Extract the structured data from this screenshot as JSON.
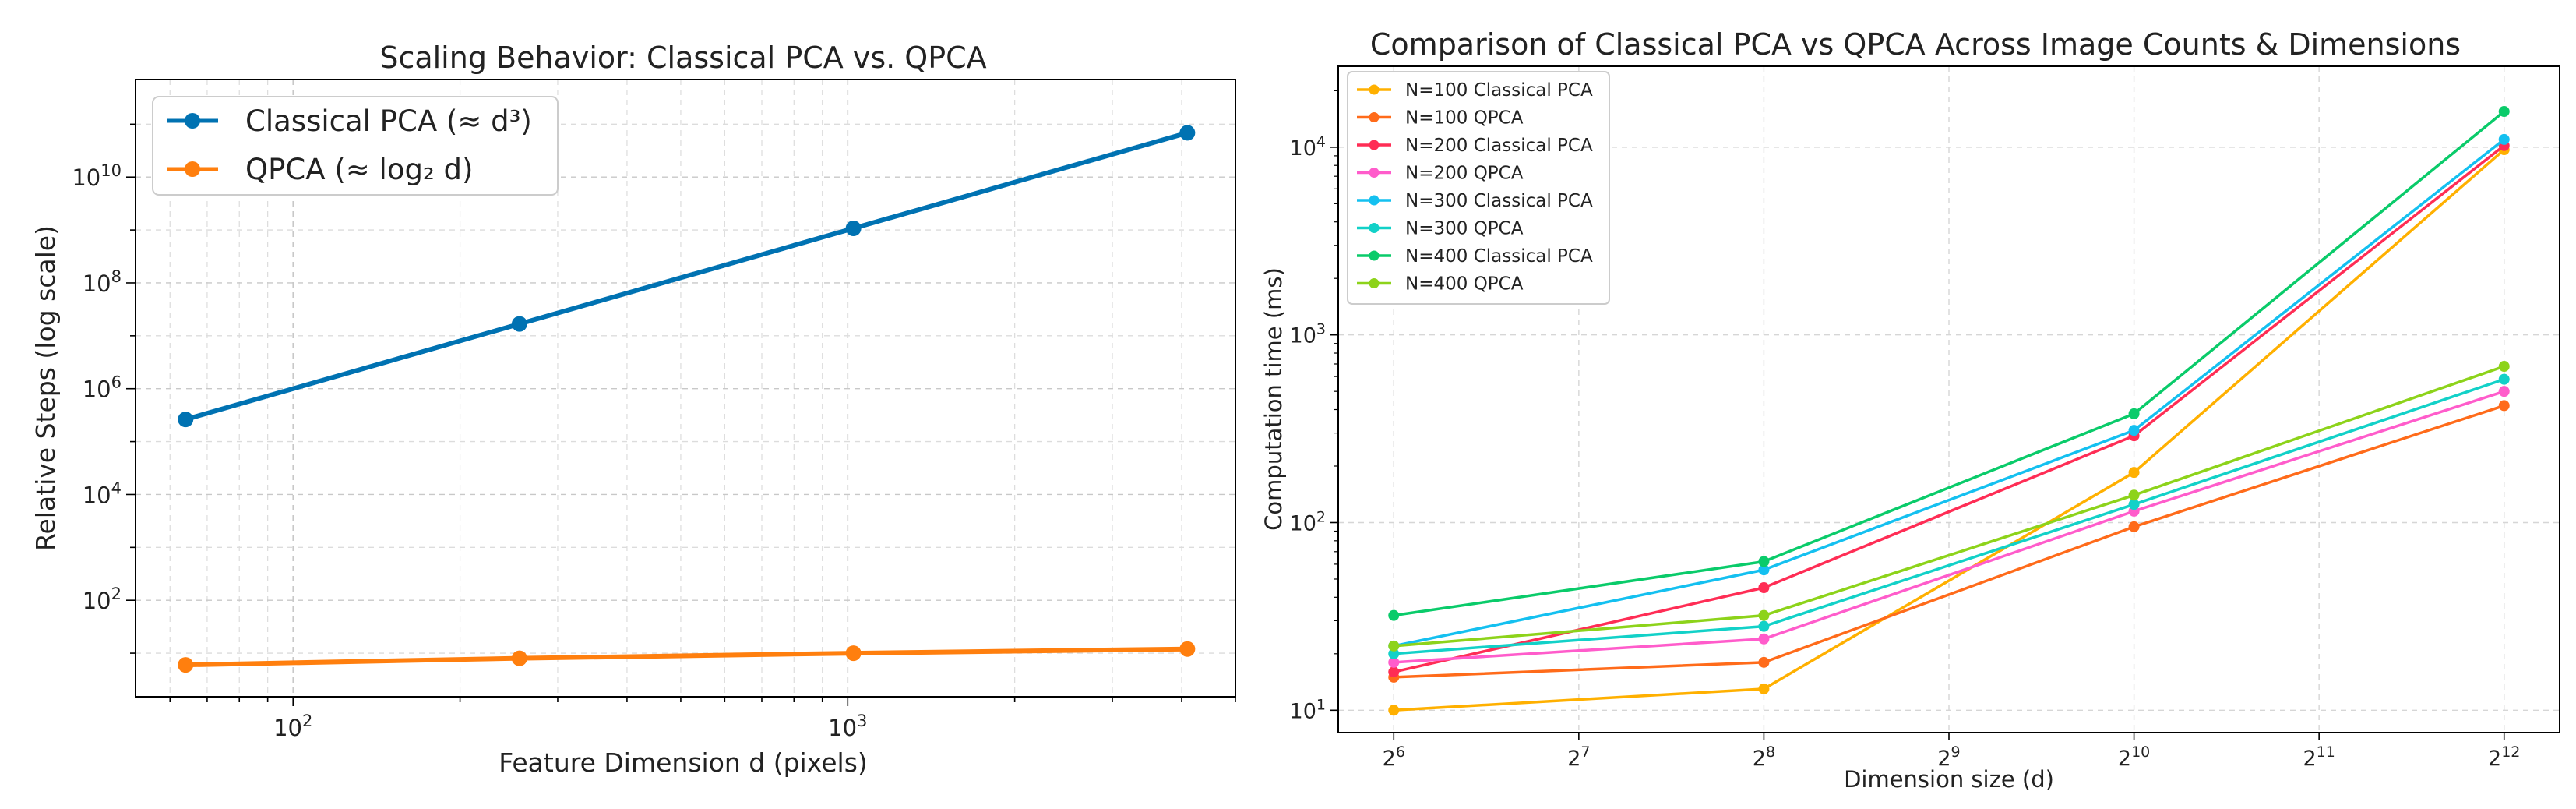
{
  "chart_data": [
    {
      "type": "line",
      "title": "Scaling Behavior: Classical PCA vs. QPCA",
      "xlabel": "Feature Dimension d (pixels)",
      "ylabel": "Relative Steps (log scale)",
      "xscale": "log",
      "yscale": "log",
      "xlim": [
        52,
        5000
      ],
      "ylim": [
        1.5,
        700000000000
      ],
      "grid": true,
      "legend_position": "top-left",
      "x_ticks": [
        {
          "value": 100,
          "label": "10",
          "exp": "2"
        },
        {
          "value": 1000,
          "label": "10",
          "exp": "3"
        }
      ],
      "y_ticks": [
        {
          "value": 100,
          "label": "10",
          "exp": "2"
        },
        {
          "value": 10000,
          "label": "10",
          "exp": "4"
        },
        {
          "value": 1000000,
          "label": "10",
          "exp": "6"
        },
        {
          "value": 100000000,
          "label": "10",
          "exp": "8"
        },
        {
          "value": 10000000000,
          "label": "10",
          "exp": "10"
        }
      ],
      "x": [
        64,
        256,
        1024,
        4096
      ],
      "series": [
        {
          "name": "Classical PCA (≈ d³)",
          "color": "#0072B2",
          "values": [
            262144,
            16777216,
            1073741824,
            68719476736
          ]
        },
        {
          "name": "QPCA (≈ log₂ d)",
          "color": "#FF7F0E",
          "values": [
            6,
            8,
            10,
            12
          ]
        }
      ]
    },
    {
      "type": "line",
      "title": "Comparison of Classical PCA vs QPCA Across Image Counts & Dimensions",
      "xlabel": "Dimension size (d)",
      "ylabel": "Computation time (ms)",
      "xscale": "log2",
      "yscale": "log",
      "xlim": [
        5.7,
        12.3
      ],
      "ylim": [
        7.6,
        27000
      ],
      "grid": true,
      "legend_position": "top-left",
      "x_ticks": [
        {
          "value": 6,
          "label": "2",
          "exp": "6"
        },
        {
          "value": 7,
          "label": "2",
          "exp": "7"
        },
        {
          "value": 8,
          "label": "2",
          "exp": "8"
        },
        {
          "value": 9,
          "label": "2",
          "exp": "9"
        },
        {
          "value": 10,
          "label": "2",
          "exp": "10"
        },
        {
          "value": 11,
          "label": "2",
          "exp": "11"
        },
        {
          "value": 12,
          "label": "2",
          "exp": "12"
        }
      ],
      "y_ticks": [
        {
          "value": 10,
          "label": "10",
          "exp": "1"
        },
        {
          "value": 100,
          "label": "10",
          "exp": "2"
        },
        {
          "value": 1000,
          "label": "10",
          "exp": "3"
        },
        {
          "value": 10000,
          "label": "10",
          "exp": "4"
        }
      ],
      "x": [
        64,
        256,
        1024,
        4096
      ],
      "series": [
        {
          "name": "N=100 Classical PCA",
          "color": "#FFB000",
          "values": [
            10,
            13,
            185,
            9700
          ]
        },
        {
          "name": "N=100 QPCA",
          "color": "#FF6B1A",
          "values": [
            15,
            18,
            95,
            420
          ]
        },
        {
          "name": "N=200 Classical PCA",
          "color": "#FF2D55",
          "values": [
            16,
            45,
            290,
            10200
          ]
        },
        {
          "name": "N=200 QPCA",
          "color": "#FF5CCB",
          "values": [
            18,
            24,
            115,
            500
          ]
        },
        {
          "name": "N=300 Classical PCA",
          "color": "#14C0F0",
          "values": [
            22,
            56,
            310,
            11000
          ]
        },
        {
          "name": "N=300 QPCA",
          "color": "#12D1C8",
          "values": [
            20,
            28,
            125,
            580
          ]
        },
        {
          "name": "N=400 Classical PCA",
          "color": "#0ACB6A",
          "values": [
            32,
            62,
            380,
            15500
          ]
        },
        {
          "name": "N=400 QPCA",
          "color": "#8DD31A",
          "values": [
            22,
            32,
            140,
            680
          ]
        }
      ]
    }
  ]
}
